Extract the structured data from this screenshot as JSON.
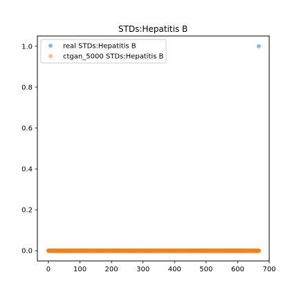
{
  "chart_data": {
    "type": "scatter",
    "title": "STDs:Hepatitis B",
    "xlabel": "",
    "ylabel": "",
    "xlim": [
      -35,
      700
    ],
    "ylim": [
      -0.05,
      1.05
    ],
    "x_ticks": [
      0,
      100,
      200,
      300,
      400,
      500,
      600,
      700
    ],
    "y_ticks": [
      0.0,
      0.2,
      0.4,
      0.6,
      0.8,
      1.0
    ],
    "x_tick_labels": [
      "0",
      "100",
      "200",
      "300",
      "400",
      "500",
      "600",
      "700"
    ],
    "y_tick_labels": [
      "0.0",
      "0.2",
      "0.4",
      "0.6",
      "0.8",
      "1.0"
    ],
    "grid": false,
    "legend_position": "upper-left",
    "series": [
      {
        "name": "real STDs:Hepatitis B",
        "color": "#1f77b4",
        "alpha": 0.5,
        "x_range": [
          0,
          667
        ],
        "y_constant": 0.0,
        "outliers": [
          {
            "x": 667,
            "y": 1.0
          }
        ]
      },
      {
        "name": "ctgan_5000 STDs:Hepatitis B",
        "color": "#ff7f0e",
        "alpha": 0.5,
        "x_range": [
          0,
          667
        ],
        "y_constant": 0.0,
        "outliers": []
      }
    ]
  }
}
